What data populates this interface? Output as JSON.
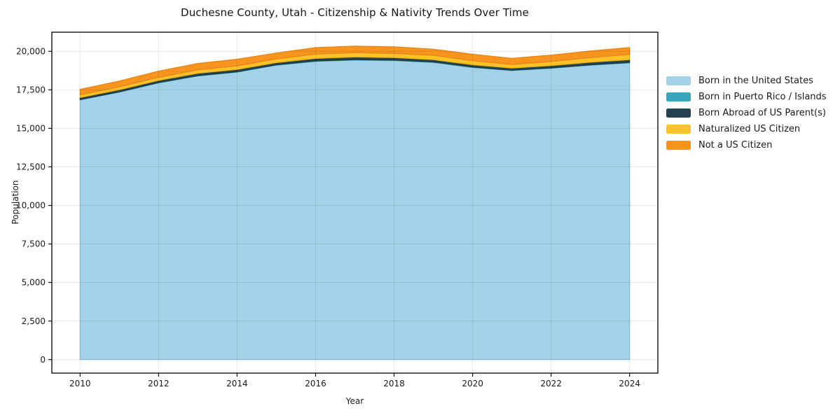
{
  "page": {
    "background": "#ffffff"
  },
  "chart_data": {
    "type": "area",
    "stacked": true,
    "title": "Duchesne County, Utah - Citizenship & Nativity Trends Over Time",
    "xlabel": "Year",
    "ylabel": "Population",
    "x": [
      2010,
      2011,
      2012,
      2013,
      2014,
      2015,
      2016,
      2017,
      2018,
      2019,
      2020,
      2021,
      2022,
      2023,
      2024
    ],
    "series": [
      {
        "name": "Born in the United States",
        "color": "#a3d2e8",
        "edge_color": "#92c6de",
        "values": [
          16850,
          17350,
          17950,
          18400,
          18650,
          19100,
          19350,
          19430,
          19400,
          19280,
          18950,
          18750,
          18900,
          19100,
          19250
        ]
      },
      {
        "name": "Born in Puerto Rico / Islands",
        "color": "#38a6bd",
        "edge_color": "#319bb1",
        "values": [
          20,
          20,
          25,
          25,
          25,
          30,
          30,
          30,
          30,
          30,
          30,
          25,
          25,
          30,
          30
        ]
      },
      {
        "name": "Born Abroad of US Parent(s)",
        "color": "#24424f",
        "edge_color": "#1d3743",
        "values": [
          130,
          135,
          140,
          150,
          150,
          140,
          160,
          170,
          160,
          150,
          150,
          140,
          150,
          160,
          180
        ]
      },
      {
        "name": "Naturalized US Citizen",
        "color": "#fcc22a",
        "edge_color": "#edb117",
        "values": [
          180,
          190,
          200,
          220,
          230,
          240,
          280,
          290,
          270,
          280,
          260,
          230,
          260,
          300,
          340
        ]
      },
      {
        "name": "Not a US Citizen",
        "color": "#f7941e",
        "edge_color": "#e8831a",
        "values": [
          350,
          380,
          400,
          420,
          430,
          380,
          420,
          420,
          430,
          400,
          420,
          400,
          420,
          430,
          450
        ]
      }
    ],
    "x_ticks": [
      2010,
      2012,
      2014,
      2016,
      2018,
      2020,
      2022,
      2024
    ],
    "y_ticks": [
      0,
      2500,
      5000,
      7500,
      10000,
      12500,
      15000,
      17500,
      20000
    ],
    "y_tick_labels": [
      "0",
      "2,500",
      "5,000",
      "7,500",
      "10,000",
      "12,500",
      "15,000",
      "17,500",
      "20,000"
    ],
    "xlim": [
      2009.28,
      2024.72
    ],
    "ylim": [
      -880,
      21240
    ],
    "grid": true,
    "legend_position": "right"
  }
}
